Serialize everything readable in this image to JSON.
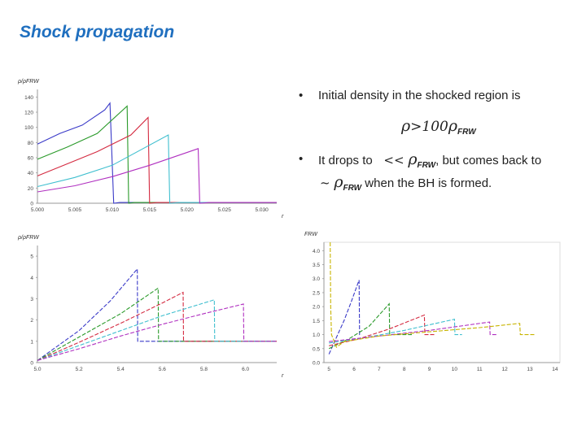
{
  "title": "Shock propagation",
  "bullets": {
    "b1_text": "Initial density in the shocked region is",
    "b1_formula": {
      "op": ">",
      "coef": "100",
      "rho": "ρ",
      "sub": "FRW"
    },
    "b2_pre": "It drops to",
    "b2_formula": {
      "op": "<<",
      "rho": "ρ",
      "sub": "FRW"
    },
    "b2_mid": ", but comes back to",
    "b2_formula2": {
      "op": "~",
      "rho": "ρ",
      "sub": "FRW"
    },
    "b2_post": "when the BH is formed.",
    "bullet_char": "•"
  },
  "colors": [
    "#3a3ac8",
    "#2a9a2a",
    "#d42a40",
    "#3fbfcf",
    "#b030c0",
    "#c8b400"
  ],
  "chart_data": [
    {
      "type": "line",
      "ylabel": "ρ/ρFRW",
      "xlabel": "r",
      "xlim": [
        5.0,
        5.032
      ],
      "ylim": [
        0,
        150
      ],
      "xticks": [
        "5.000",
        "5.005",
        "5.010",
        "5.015",
        "5.020",
        "5.025",
        "5.030"
      ],
      "yticks": [
        "0",
        "20",
        "40",
        "60",
        "80",
        "100",
        "120",
        "140"
      ],
      "series": [
        {
          "x": [
            5.0,
            5.003,
            5.006,
            5.009,
            5.0097,
            5.0102,
            5.011,
            5.032
          ],
          "y": [
            78,
            92,
            103,
            123,
            132,
            0,
            1,
            1
          ]
        },
        {
          "x": [
            5.0,
            5.004,
            5.008,
            5.012,
            5.0122,
            5.013,
            5.032
          ],
          "y": [
            58,
            74,
            92,
            128,
            0,
            1,
            1
          ]
        },
        {
          "x": [
            5.0,
            5.004,
            5.008,
            5.0125,
            5.0148,
            5.015,
            5.016,
            5.032
          ],
          "y": [
            36,
            52,
            68,
            90,
            113,
            0,
            1,
            1
          ]
        },
        {
          "x": [
            5.0,
            5.005,
            5.01,
            5.0175,
            5.0177,
            5.019,
            5.032
          ],
          "y": [
            22,
            34,
            50,
            90,
            0,
            1,
            1
          ]
        },
        {
          "x": [
            5.0,
            5.005,
            5.01,
            5.015,
            5.0215,
            5.0217,
            5.023,
            5.032
          ],
          "y": [
            15,
            23,
            35,
            50,
            72,
            0,
            1,
            1
          ]
        }
      ]
    },
    {
      "type": "line",
      "ylabel": "ρ/ρFRW",
      "xlabel": "r",
      "xlim": [
        5.0,
        6.15
      ],
      "ylim": [
        0,
        5.5
      ],
      "xticks": [
        "5.0",
        "5.2",
        "5.4",
        "5.6",
        "5.8",
        "6.0"
      ],
      "yticks": [
        "0",
        "1",
        "2",
        "3",
        "4",
        "5"
      ],
      "series": [
        {
          "x": [
            5.0,
            5.2,
            5.35,
            5.48,
            5.482,
            5.52,
            6.15
          ],
          "y": [
            0.1,
            1.5,
            2.9,
            4.4,
            1.0,
            1.0,
            1.0
          ]
        },
        {
          "x": [
            5.0,
            5.2,
            5.4,
            5.58,
            5.582,
            5.62,
            6.15
          ],
          "y": [
            0.1,
            1.2,
            2.3,
            3.5,
            1.0,
            1.0,
            1.0
          ]
        },
        {
          "x": [
            5.0,
            5.2,
            5.4,
            5.6,
            5.7,
            5.702,
            6.15
          ],
          "y": [
            0.1,
            0.95,
            1.85,
            2.8,
            3.3,
            1.0,
            1.0
          ]
        },
        {
          "x": [
            5.0,
            5.2,
            5.4,
            5.6,
            5.85,
            5.852,
            6.15
          ],
          "y": [
            0.1,
            0.8,
            1.5,
            2.2,
            2.95,
            1.0,
            1.0
          ]
        },
        {
          "x": [
            5.0,
            5.2,
            5.4,
            5.6,
            5.8,
            5.99,
            5.992,
            6.15
          ],
          "y": [
            0.1,
            0.65,
            1.25,
            1.8,
            2.3,
            2.75,
            1.0,
            1.0
          ]
        }
      ]
    },
    {
      "type": "line",
      "ylabel": "FRW",
      "xlabel": "",
      "xlim": [
        4.8,
        14.2
      ],
      "ylim": [
        0,
        4.3
      ],
      "xticks": [
        "5",
        "6",
        "7",
        "8",
        "9",
        "10",
        "11",
        "12",
        "13",
        "14"
      ],
      "yticks": [
        "0.0",
        "0.5",
        "1.0",
        "1.5",
        "2.0",
        "2.5",
        "3.0",
        "3.5",
        "4.0"
      ],
      "series": [
        {
          "x": [
            5.0,
            5.3,
            5.6,
            5.9,
            6.2,
            6.22,
            6.3
          ],
          "y": [
            0.3,
            0.9,
            1.5,
            2.2,
            2.95,
            1.0,
            1.0
          ]
        },
        {
          "x": [
            5.0,
            5.8,
            6.6,
            7.4,
            7.42,
            7.6,
            8.3
          ],
          "y": [
            0.5,
            0.85,
            1.3,
            2.1,
            1.0,
            1.0,
            1.0
          ]
        },
        {
          "x": [
            5.0,
            6.2,
            7.4,
            8.8,
            8.82,
            9.2
          ],
          "y": [
            0.6,
            0.85,
            1.2,
            1.7,
            1.0,
            1.0
          ]
        },
        {
          "x": [
            5.0,
            6.5,
            8.0,
            10.0,
            10.02,
            10.3
          ],
          "y": [
            0.7,
            0.9,
            1.15,
            1.55,
            1.0,
            1.0
          ]
        },
        {
          "x": [
            5.0,
            7.0,
            9.0,
            11.4,
            11.42,
            11.7
          ],
          "y": [
            0.75,
            0.95,
            1.15,
            1.45,
            1.0,
            1.0
          ]
        },
        {
          "x": [
            5.05,
            5.07,
            5.1,
            5.3,
            5.6,
            7.0,
            9.0,
            11.0,
            12.6,
            12.62,
            13.2
          ],
          "y": [
            4.3,
            2.0,
            1.0,
            0.55,
            0.75,
            0.95,
            1.1,
            1.25,
            1.4,
            1.0,
            1.0
          ]
        }
      ]
    }
  ]
}
